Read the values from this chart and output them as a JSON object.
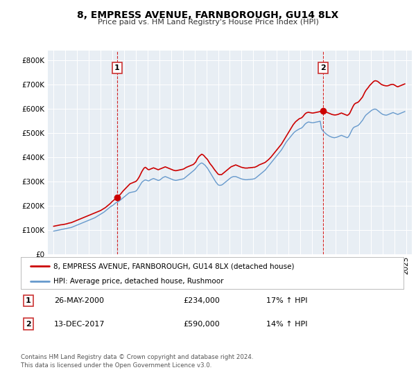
{
  "title": "8, EMPRESS AVENUE, FARNBOROUGH, GU14 8LX",
  "subtitle": "Price paid vs. HM Land Registry's House Price Index (HPI)",
  "legend_line1": "8, EMPRESS AVENUE, FARNBOROUGH, GU14 8LX (detached house)",
  "legend_line2": "HPI: Average price, detached house, Rushmoor",
  "annotation1_label": "1",
  "annotation1_date": "26-MAY-2000",
  "annotation1_price": "£234,000",
  "annotation1_hpi": "17% ↑ HPI",
  "annotation2_label": "2",
  "annotation2_date": "13-DEC-2017",
  "annotation2_price": "£590,000",
  "annotation2_hpi": "14% ↑ HPI",
  "footer1": "Contains HM Land Registry data © Crown copyright and database right 2024.",
  "footer2": "This data is licensed under the Open Government Licence v3.0.",
  "sale1_x": 2000.4,
  "sale1_y": 234000,
  "sale2_x": 2017.95,
  "sale2_y": 590000,
  "vline1_x": 2000.4,
  "vline2_x": 2017.95,
  "red_color": "#cc0000",
  "blue_color": "#6699cc",
  "plot_bg_color": "#e8eef4",
  "ylim": [
    0,
    840000
  ],
  "xlim_start": 1994.5,
  "xlim_end": 2025.5,
  "yticks": [
    0,
    100000,
    200000,
    300000,
    400000,
    500000,
    600000,
    700000,
    800000
  ],
  "xticks": [
    1995,
    1996,
    1997,
    1998,
    1999,
    2000,
    2001,
    2002,
    2003,
    2004,
    2005,
    2006,
    2007,
    2008,
    2009,
    2010,
    2011,
    2012,
    2013,
    2014,
    2015,
    2016,
    2017,
    2018,
    2019,
    2020,
    2021,
    2022,
    2023,
    2024,
    2025
  ],
  "red_x": [
    1995.0,
    1995.1,
    1995.2,
    1995.3,
    1995.4,
    1995.5,
    1995.6,
    1995.7,
    1995.8,
    1995.9,
    1996.0,
    1996.1,
    1996.2,
    1996.3,
    1996.4,
    1996.5,
    1996.6,
    1996.7,
    1996.8,
    1996.9,
    1997.0,
    1997.1,
    1997.2,
    1997.3,
    1997.4,
    1997.5,
    1997.6,
    1997.7,
    1997.8,
    1997.9,
    1998.0,
    1998.1,
    1998.2,
    1998.3,
    1998.4,
    1998.5,
    1998.6,
    1998.7,
    1998.8,
    1998.9,
    1999.0,
    1999.1,
    1999.2,
    1999.3,
    1999.4,
    1999.5,
    1999.6,
    1999.7,
    1999.8,
    1999.9,
    2000.0,
    2000.1,
    2000.2,
    2000.3,
    2000.4,
    2000.5,
    2000.6,
    2000.7,
    2000.8,
    2000.9,
    2001.0,
    2001.1,
    2001.2,
    2001.3,
    2001.4,
    2001.5,
    2001.6,
    2001.7,
    2001.8,
    2001.9,
    2002.0,
    2002.1,
    2002.2,
    2002.3,
    2002.4,
    2002.5,
    2002.6,
    2002.7,
    2002.8,
    2002.9,
    2003.0,
    2003.1,
    2003.2,
    2003.3,
    2003.4,
    2003.5,
    2003.6,
    2003.7,
    2003.8,
    2003.9,
    2004.0,
    2004.1,
    2004.2,
    2004.3,
    2004.4,
    2004.5,
    2004.6,
    2004.7,
    2004.8,
    2004.9,
    2005.0,
    2005.1,
    2005.2,
    2005.3,
    2005.4,
    2005.5,
    2005.6,
    2005.7,
    2005.8,
    2005.9,
    2006.0,
    2006.1,
    2006.2,
    2006.3,
    2006.4,
    2006.5,
    2006.6,
    2006.7,
    2006.8,
    2006.9,
    2007.0,
    2007.1,
    2007.2,
    2007.3,
    2007.4,
    2007.5,
    2007.6,
    2007.7,
    2007.8,
    2007.9,
    2008.0,
    2008.1,
    2008.2,
    2008.3,
    2008.4,
    2008.5,
    2008.6,
    2008.7,
    2008.8,
    2008.9,
    2009.0,
    2009.1,
    2009.2,
    2009.3,
    2009.4,
    2009.5,
    2009.6,
    2009.7,
    2009.8,
    2009.9,
    2010.0,
    2010.1,
    2010.2,
    2010.3,
    2010.4,
    2010.5,
    2010.6,
    2010.7,
    2010.8,
    2010.9,
    2011.0,
    2011.1,
    2011.2,
    2011.3,
    2011.4,
    2011.5,
    2011.6,
    2011.7,
    2011.8,
    2011.9,
    2012.0,
    2012.1,
    2012.2,
    2012.3,
    2012.4,
    2012.5,
    2012.6,
    2012.7,
    2012.8,
    2012.9,
    2013.0,
    2013.1,
    2013.2,
    2013.3,
    2013.4,
    2013.5,
    2013.6,
    2013.7,
    2013.8,
    2013.9,
    2014.0,
    2014.1,
    2014.2,
    2014.3,
    2014.4,
    2014.5,
    2014.6,
    2014.7,
    2014.8,
    2014.9,
    2015.0,
    2015.1,
    2015.2,
    2015.3,
    2015.4,
    2015.5,
    2015.6,
    2015.7,
    2015.8,
    2015.9,
    2016.0,
    2016.1,
    2016.2,
    2016.3,
    2016.4,
    2016.5,
    2016.6,
    2016.7,
    2016.8,
    2016.9,
    2017.0,
    2017.1,
    2017.2,
    2017.3,
    2017.4,
    2017.5,
    2017.6,
    2017.7,
    2017.8,
    2017.95,
    2018.0,
    2018.1,
    2018.2,
    2018.3,
    2018.4,
    2018.5,
    2018.6,
    2018.7,
    2018.8,
    2018.9,
    2019.0,
    2019.1,
    2019.2,
    2019.3,
    2019.4,
    2019.5,
    2019.6,
    2019.7,
    2019.8,
    2019.9,
    2020.0,
    2020.1,
    2020.2,
    2020.3,
    2020.4,
    2020.5,
    2020.6,
    2020.7,
    2020.8,
    2020.9,
    2021.0,
    2021.1,
    2021.2,
    2021.3,
    2021.4,
    2021.5,
    2021.6,
    2021.7,
    2021.8,
    2021.9,
    2022.0,
    2022.1,
    2022.2,
    2022.3,
    2022.4,
    2022.5,
    2022.6,
    2022.7,
    2022.8,
    2022.9,
    2023.0,
    2023.1,
    2023.2,
    2023.3,
    2023.4,
    2023.5,
    2023.6,
    2023.7,
    2023.8,
    2023.9,
    2024.0,
    2024.1,
    2024.2,
    2024.3,
    2024.4,
    2024.5,
    2024.6,
    2024.7,
    2024.8,
    2024.9
  ],
  "red_y": [
    115000,
    116000,
    117000,
    118000,
    119000,
    120000,
    121000,
    121500,
    122000,
    123000,
    124000,
    125000,
    126500,
    128000,
    129000,
    130000,
    132000,
    134000,
    136000,
    138000,
    140000,
    142000,
    144000,
    146000,
    148000,
    150000,
    152000,
    154000,
    156000,
    158000,
    160000,
    162000,
    164000,
    166000,
    168000,
    170000,
    172000,
    174000,
    176000,
    178000,
    180000,
    183000,
    186000,
    189000,
    192000,
    196000,
    200000,
    204000,
    208000,
    213000,
    218000,
    222000,
    226000,
    230000,
    234000,
    238000,
    243000,
    248000,
    254000,
    260000,
    265000,
    270000,
    275000,
    280000,
    285000,
    290000,
    292000,
    294000,
    296000,
    298000,
    300000,
    305000,
    312000,
    320000,
    330000,
    340000,
    348000,
    355000,
    358000,
    355000,
    350000,
    348000,
    350000,
    352000,
    354000,
    356000,
    354000,
    352000,
    350000,
    348000,
    350000,
    352000,
    354000,
    356000,
    358000,
    360000,
    358000,
    356000,
    354000,
    352000,
    350000,
    348000,
    346000,
    345000,
    344000,
    345000,
    346000,
    347000,
    348000,
    349000,
    350000,
    352000,
    355000,
    358000,
    360000,
    362000,
    364000,
    366000,
    368000,
    370000,
    375000,
    380000,
    390000,
    398000,
    404000,
    408000,
    412000,
    410000,
    406000,
    400000,
    395000,
    390000,
    382000,
    374000,
    368000,
    362000,
    355000,
    348000,
    342000,
    336000,
    330000,
    328000,
    328000,
    328000,
    332000,
    336000,
    340000,
    344000,
    348000,
    352000,
    356000,
    360000,
    362000,
    364000,
    366000,
    368000,
    366000,
    364000,
    362000,
    360000,
    358000,
    357000,
    356000,
    355000,
    355000,
    355000,
    356000,
    356000,
    357000,
    357000,
    358000,
    358000,
    360000,
    362000,
    365000,
    368000,
    370000,
    372000,
    374000,
    376000,
    378000,
    382000,
    386000,
    390000,
    395000,
    400000,
    406000,
    412000,
    418000,
    424000,
    430000,
    436000,
    442000,
    448000,
    454000,
    462000,
    470000,
    478000,
    486000,
    494000,
    502000,
    510000,
    518000,
    526000,
    534000,
    540000,
    546000,
    550000,
    554000,
    558000,
    560000,
    562000,
    566000,
    572000,
    578000,
    582000,
    584000,
    585000,
    584000,
    583000,
    582000,
    582000,
    583000,
    584000,
    585000,
    586000,
    587000,
    588000,
    590000,
    590000,
    589000,
    588000,
    586000,
    584000,
    582000,
    580000,
    578000,
    576000,
    575000,
    574000,
    574000,
    575000,
    576000,
    578000,
    580000,
    582000,
    580000,
    578000,
    576000,
    574000,
    572000,
    575000,
    580000,
    590000,
    600000,
    610000,
    618000,
    622000,
    624000,
    626000,
    630000,
    636000,
    642000,
    648000,
    658000,
    668000,
    676000,
    682000,
    688000,
    695000,
    700000,
    705000,
    710000,
    714000,
    715000,
    714000,
    712000,
    708000,
    704000,
    700000,
    698000,
    696000,
    695000,
    694000,
    694000,
    695000,
    697000,
    699000,
    700000,
    700000,
    698000,
    695000,
    692000,
    690000,
    692000,
    694000,
    696000,
    698000,
    700000,
    702000
  ],
  "blue_x": [
    1995.0,
    1995.1,
    1995.2,
    1995.3,
    1995.4,
    1995.5,
    1995.6,
    1995.7,
    1995.8,
    1995.9,
    1996.0,
    1996.1,
    1996.2,
    1996.3,
    1996.4,
    1996.5,
    1996.6,
    1996.7,
    1996.8,
    1996.9,
    1997.0,
    1997.1,
    1997.2,
    1997.3,
    1997.4,
    1997.5,
    1997.6,
    1997.7,
    1997.8,
    1997.9,
    1998.0,
    1998.1,
    1998.2,
    1998.3,
    1998.4,
    1998.5,
    1998.6,
    1998.7,
    1998.8,
    1998.9,
    1999.0,
    1999.1,
    1999.2,
    1999.3,
    1999.4,
    1999.5,
    1999.6,
    1999.7,
    1999.8,
    1999.9,
    2000.0,
    2000.1,
    2000.2,
    2000.3,
    2000.4,
    2000.5,
    2000.6,
    2000.7,
    2000.8,
    2000.9,
    2001.0,
    2001.1,
    2001.2,
    2001.3,
    2001.4,
    2001.5,
    2001.6,
    2001.7,
    2001.8,
    2001.9,
    2002.0,
    2002.1,
    2002.2,
    2002.3,
    2002.4,
    2002.5,
    2002.6,
    2002.7,
    2002.8,
    2002.9,
    2003.0,
    2003.1,
    2003.2,
    2003.3,
    2003.4,
    2003.5,
    2003.6,
    2003.7,
    2003.8,
    2003.9,
    2004.0,
    2004.1,
    2004.2,
    2004.3,
    2004.4,
    2004.5,
    2004.6,
    2004.7,
    2004.8,
    2004.9,
    2005.0,
    2005.1,
    2005.2,
    2005.3,
    2005.4,
    2005.5,
    2005.6,
    2005.7,
    2005.8,
    2005.9,
    2006.0,
    2006.1,
    2006.2,
    2006.3,
    2006.4,
    2006.5,
    2006.6,
    2006.7,
    2006.8,
    2006.9,
    2007.0,
    2007.1,
    2007.2,
    2007.3,
    2007.4,
    2007.5,
    2007.6,
    2007.7,
    2007.8,
    2007.9,
    2008.0,
    2008.1,
    2008.2,
    2008.3,
    2008.4,
    2008.5,
    2008.6,
    2008.7,
    2008.8,
    2008.9,
    2009.0,
    2009.1,
    2009.2,
    2009.3,
    2009.4,
    2009.5,
    2009.6,
    2009.7,
    2009.8,
    2009.9,
    2010.0,
    2010.1,
    2010.2,
    2010.3,
    2010.4,
    2010.5,
    2010.6,
    2010.7,
    2010.8,
    2010.9,
    2011.0,
    2011.1,
    2011.2,
    2011.3,
    2011.4,
    2011.5,
    2011.6,
    2011.7,
    2011.8,
    2011.9,
    2012.0,
    2012.1,
    2012.2,
    2012.3,
    2012.4,
    2012.5,
    2012.6,
    2012.7,
    2012.8,
    2012.9,
    2013.0,
    2013.1,
    2013.2,
    2013.3,
    2013.4,
    2013.5,
    2013.6,
    2013.7,
    2013.8,
    2013.9,
    2014.0,
    2014.1,
    2014.2,
    2014.3,
    2014.4,
    2014.5,
    2014.6,
    2014.7,
    2014.8,
    2014.9,
    2015.0,
    2015.1,
    2015.2,
    2015.3,
    2015.4,
    2015.5,
    2015.6,
    2015.7,
    2015.8,
    2015.9,
    2016.0,
    2016.1,
    2016.2,
    2016.3,
    2016.4,
    2016.5,
    2016.6,
    2016.7,
    2016.8,
    2016.9,
    2017.0,
    2017.1,
    2017.2,
    2017.3,
    2017.4,
    2017.5,
    2017.6,
    2017.7,
    2017.8,
    2017.9,
    2018.0,
    2018.1,
    2018.2,
    2018.3,
    2018.4,
    2018.5,
    2018.6,
    2018.7,
    2018.8,
    2018.9,
    2019.0,
    2019.1,
    2019.2,
    2019.3,
    2019.4,
    2019.5,
    2019.6,
    2019.7,
    2019.8,
    2019.9,
    2020.0,
    2020.1,
    2020.2,
    2020.3,
    2020.4,
    2020.5,
    2020.6,
    2020.7,
    2020.8,
    2020.9,
    2021.0,
    2021.1,
    2021.2,
    2021.3,
    2021.4,
    2021.5,
    2021.6,
    2021.7,
    2021.8,
    2021.9,
    2022.0,
    2022.1,
    2022.2,
    2022.3,
    2022.4,
    2022.5,
    2022.6,
    2022.7,
    2022.8,
    2022.9,
    2023.0,
    2023.1,
    2023.2,
    2023.3,
    2023.4,
    2023.5,
    2023.6,
    2023.7,
    2023.8,
    2023.9,
    2024.0,
    2024.1,
    2024.2,
    2024.3,
    2024.4,
    2024.5,
    2024.6,
    2024.7,
    2024.8,
    2024.9
  ],
  "blue_y": [
    95000,
    96000,
    97000,
    98000,
    99000,
    100000,
    101000,
    102000,
    103000,
    104000,
    105000,
    106000,
    107000,
    108000,
    109000,
    110000,
    112000,
    114000,
    116000,
    118000,
    120000,
    122000,
    124000,
    126000,
    128000,
    130000,
    132000,
    134000,
    136000,
    138000,
    140000,
    142000,
    144000,
    146000,
    148000,
    150000,
    153000,
    156000,
    159000,
    162000,
    165000,
    168000,
    171000,
    174000,
    178000,
    182000,
    186000,
    190000,
    194000,
    198000,
    200000,
    204000,
    208000,
    212000,
    214000,
    216000,
    220000,
    224000,
    228000,
    232000,
    236000,
    240000,
    244000,
    248000,
    252000,
    254000,
    255000,
    256000,
    257000,
    258000,
    260000,
    265000,
    272000,
    280000,
    288000,
    296000,
    300000,
    304000,
    306000,
    305000,
    303000,
    302000,
    305000,
    308000,
    310000,
    312000,
    310000,
    308000,
    306000,
    304000,
    305000,
    308000,
    312000,
    316000,
    318000,
    320000,
    318000,
    316000,
    314000,
    312000,
    310000,
    308000,
    306000,
    305000,
    304000,
    305000,
    306000,
    307000,
    308000,
    309000,
    310000,
    312000,
    316000,
    320000,
    324000,
    328000,
    332000,
    336000,
    340000,
    344000,
    348000,
    354000,
    360000,
    366000,
    370000,
    374000,
    376000,
    374000,
    370000,
    366000,
    360000,
    354000,
    346000,
    338000,
    330000,
    322000,
    314000,
    306000,
    298000,
    292000,
    286000,
    284000,
    284000,
    285000,
    288000,
    292000,
    296000,
    300000,
    304000,
    308000,
    312000,
    316000,
    318000,
    320000,
    320000,
    320000,
    318000,
    316000,
    314000,
    312000,
    310000,
    309000,
    308000,
    307000,
    307000,
    307000,
    308000,
    308000,
    309000,
    309000,
    310000,
    311000,
    314000,
    318000,
    322000,
    326000,
    330000,
    334000,
    338000,
    342000,
    346000,
    352000,
    358000,
    364000,
    370000,
    376000,
    382000,
    388000,
    394000,
    400000,
    406000,
    412000,
    418000,
    424000,
    430000,
    438000,
    446000,
    454000,
    462000,
    468000,
    474000,
    480000,
    486000,
    492000,
    498000,
    503000,
    507000,
    510000,
    513000,
    516000,
    518000,
    520000,
    524000,
    530000,
    536000,
    540000,
    543000,
    545000,
    544000,
    543000,
    542000,
    542000,
    543000,
    544000,
    545000,
    546000,
    547000,
    548000,
    518000,
    510000,
    505000,
    500000,
    496000,
    492000,
    489000,
    486000,
    484000,
    482000,
    481000,
    480000,
    481000,
    482000,
    484000,
    486000,
    488000,
    490000,
    488000,
    486000,
    484000,
    482000,
    480000,
    484000,
    492000,
    502000,
    512000,
    520000,
    524000,
    526000,
    528000,
    530000,
    534000,
    540000,
    546000,
    552000,
    560000,
    568000,
    574000,
    578000,
    582000,
    586000,
    590000,
    594000,
    596000,
    598000,
    598000,
    596000,
    592000,
    588000,
    584000,
    580000,
    577000,
    575000,
    574000,
    573000,
    574000,
    576000,
    578000,
    580000,
    582000,
    584000,
    582000,
    580000,
    578000,
    576000,
    578000,
    580000,
    582000,
    584000,
    586000,
    588000
  ]
}
